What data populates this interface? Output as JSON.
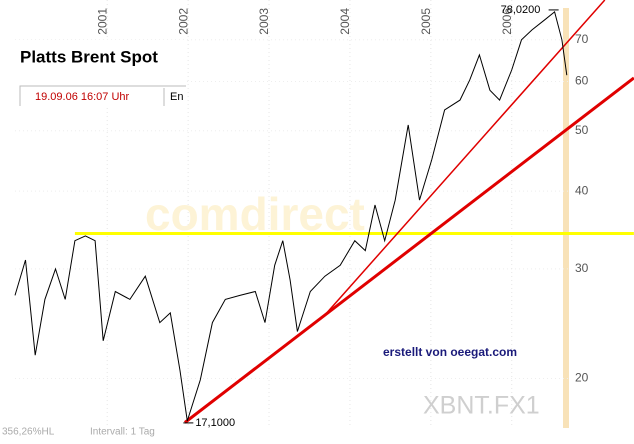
{
  "chart_data": {
    "type": "line",
    "title": "Platts Brent Spot",
    "subtitle": "19.09.06  16:07 Uhr",
    "tab": "En",
    "watermark": "comdirect",
    "credit": "erstellt von oeegat.com",
    "symbol": "XBNT.FX1",
    "range_note": "356,26%HL",
    "interval": "Intervall: 1 Tag",
    "max_label": "78,0200",
    "min_label": "17,1000",
    "log_y": true,
    "grid": true,
    "color": "#000000",
    "xlim": [
      1999.86,
      2006.72
    ],
    "xticks": [
      2001,
      2002,
      2003,
      2004,
      2005,
      2006
    ],
    "ylim": [
      15.7,
      81.1
    ],
    "yticks": [
      20,
      30,
      40,
      50,
      60,
      70
    ],
    "x": [
      1999.86,
      1999.99,
      2000.11,
      2000.23,
      2000.36,
      2000.48,
      2000.6,
      2000.73,
      2000.85,
      2000.95,
      2001.1,
      2001.28,
      2001.47,
      2001.65,
      2001.78,
      2001.9,
      2001.99,
      2002.15,
      2002.3,
      2002.46,
      2002.64,
      2002.83,
      2002.95,
      2003.07,
      2003.17,
      2003.26,
      2003.35,
      2003.51,
      2003.69,
      2003.88,
      2004.06,
      2004.19,
      2004.31,
      2004.43,
      2004.56,
      2004.72,
      2004.86,
      2005.01,
      2005.17,
      2005.36,
      2005.48,
      2005.6,
      2005.73,
      2005.85,
      2006.0,
      2006.12,
      2006.25,
      2006.41,
      2006.53,
      2006.62,
      2006.68
    ],
    "values": [
      27.2,
      31,
      21.8,
      26.8,
      30,
      26.8,
      33.3,
      33.9,
      33.3,
      23,
      27.6,
      26.8,
      29.2,
      24.6,
      25.5,
      20.6,
      17.1,
      19.9,
      24.6,
      26.8,
      27.2,
      27.6,
      24.6,
      30.4,
      33.3,
      28.8,
      23.8,
      27.6,
      29.2,
      30.4,
      33.3,
      32.1,
      38,
      33.3,
      38.7,
      51.1,
      38.7,
      44.9,
      54,
      56,
      60.3,
      66.2,
      58.1,
      56,
      62.6,
      70,
      72.6,
      75.4,
      77.6,
      70,
      61.4
    ],
    "lines": [
      {
        "color": "#ffff00",
        "x": [
          2000.6,
          2007.51
        ],
        "y": [
          34.2,
          34.2
        ]
      },
      {
        "color": "#e00000",
        "x": [
          2001.96,
          2007.51
        ],
        "y": [
          17.0,
          60.8
        ]
      },
      {
        "color": "#e00000",
        "x": [
          2003.69,
          2007.15
        ],
        "y": [
          25.3,
          81.1
        ]
      }
    ]
  }
}
